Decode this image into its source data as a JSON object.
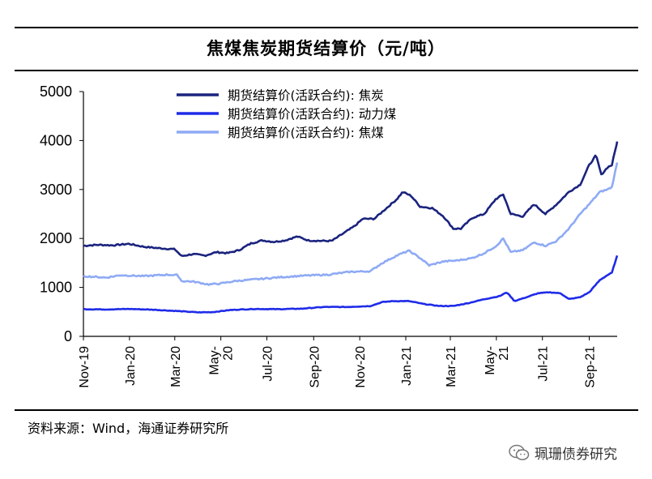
{
  "title": "焦煤焦炭期货结算价（元/吨）",
  "source": "资料来源：Wind，海通证券研究所",
  "watermark": "珮珊债券研究",
  "chart_data": {
    "type": "line",
    "title": "焦煤焦炭期货结算价（元/吨）",
    "ylim": [
      0,
      5000
    ],
    "yticks": [
      0,
      1000,
      2000,
      3000,
      4000,
      5000
    ],
    "xlim": [
      "2019-11-01",
      "2021-10-08"
    ],
    "xticks": [
      "2019-11-01",
      "2020-01-01",
      "2020-03-01",
      "2020-05-01",
      "2020-07-01",
      "2020-09-01",
      "2020-11-01",
      "2021-01-01",
      "2021-03-01",
      "2021-05-01",
      "2021-07-01",
      "2021-09-01"
    ],
    "xtick_labels": [
      "Nov-19",
      "Jan-20",
      "Mar-20",
      "May-20",
      "Jul-20",
      "Sep-20",
      "Nov-20",
      "Jan-21",
      "Mar-21",
      "May-21",
      "Jul-21",
      "Sep-21"
    ],
    "legend_position": "top-center",
    "grid": false,
    "series": [
      {
        "name": "期货结算价(活跃合约): 焦炭",
        "color": "#1a237e",
        "points": [
          [
            "2019-11-01",
            1850
          ],
          [
            "2019-11-20",
            1870
          ],
          [
            "2019-12-10",
            1860
          ],
          [
            "2019-12-31",
            1890
          ],
          [
            "2020-01-20",
            1830
          ],
          [
            "2020-02-10",
            1800
          ],
          [
            "2020-03-01",
            1780
          ],
          [
            "2020-03-10",
            1640
          ],
          [
            "2020-03-25",
            1680
          ],
          [
            "2020-04-10",
            1650
          ],
          [
            "2020-04-25",
            1720
          ],
          [
            "2020-05-10",
            1700
          ],
          [
            "2020-05-25",
            1760
          ],
          [
            "2020-06-10",
            1900
          ],
          [
            "2020-06-25",
            1960
          ],
          [
            "2020-07-10",
            1930
          ],
          [
            "2020-07-25",
            1960
          ],
          [
            "2020-08-10",
            2040
          ],
          [
            "2020-08-25",
            1960
          ],
          [
            "2020-09-10",
            1950
          ],
          [
            "2020-09-25",
            1950
          ],
          [
            "2020-10-10",
            2100
          ],
          [
            "2020-10-25",
            2250
          ],
          [
            "2020-11-05",
            2400
          ],
          [
            "2020-11-20",
            2400
          ],
          [
            "2020-12-05",
            2600
          ],
          [
            "2020-12-20",
            2800
          ],
          [
            "2020-12-28",
            2950
          ],
          [
            "2021-01-08",
            2870
          ],
          [
            "2021-01-20",
            2650
          ],
          [
            "2021-02-05",
            2620
          ],
          [
            "2021-02-20",
            2450
          ],
          [
            "2021-03-05",
            2200
          ],
          [
            "2021-03-15",
            2200
          ],
          [
            "2021-03-30",
            2420
          ],
          [
            "2021-04-15",
            2500
          ],
          [
            "2021-04-30",
            2800
          ],
          [
            "2021-05-10",
            2900
          ],
          [
            "2021-05-20",
            2500
          ],
          [
            "2021-06-05",
            2450
          ],
          [
            "2021-06-20",
            2700
          ],
          [
            "2021-07-05",
            2500
          ],
          [
            "2021-07-20",
            2700
          ],
          [
            "2021-08-05",
            2950
          ],
          [
            "2021-08-20",
            3100
          ],
          [
            "2021-09-01",
            3500
          ],
          [
            "2021-09-10",
            3700
          ],
          [
            "2021-09-17",
            3300
          ],
          [
            "2021-09-25",
            3450
          ],
          [
            "2021-10-01",
            3500
          ],
          [
            "2021-10-08",
            3980
          ]
        ]
      },
      {
        "name": "期货结算价(活跃合约): 动力煤",
        "color": "#1f2be8",
        "points": [
          [
            "2019-11-01",
            555
          ],
          [
            "2019-12-01",
            550
          ],
          [
            "2020-01-01",
            560
          ],
          [
            "2020-02-01",
            545
          ],
          [
            "2020-03-01",
            520
          ],
          [
            "2020-04-01",
            490
          ],
          [
            "2020-04-20",
            495
          ],
          [
            "2020-05-15",
            540
          ],
          [
            "2020-06-15",
            560
          ],
          [
            "2020-07-15",
            555
          ],
          [
            "2020-08-15",
            565
          ],
          [
            "2020-09-15",
            600
          ],
          [
            "2020-10-15",
            600
          ],
          [
            "2020-11-15",
            620
          ],
          [
            "2020-12-01",
            700
          ],
          [
            "2020-12-15",
            720
          ],
          [
            "2021-01-05",
            720
          ],
          [
            "2021-01-25",
            660
          ],
          [
            "2021-02-15",
            620
          ],
          [
            "2021-03-05",
            620
          ],
          [
            "2021-03-25",
            680
          ],
          [
            "2021-04-15",
            760
          ],
          [
            "2021-05-05",
            820
          ],
          [
            "2021-05-15",
            900
          ],
          [
            "2021-05-25",
            720
          ],
          [
            "2021-06-10",
            800
          ],
          [
            "2021-06-25",
            880
          ],
          [
            "2021-07-10",
            900
          ],
          [
            "2021-07-25",
            880
          ],
          [
            "2021-08-05",
            760
          ],
          [
            "2021-08-20",
            800
          ],
          [
            "2021-09-01",
            900
          ],
          [
            "2021-09-15",
            1150
          ],
          [
            "2021-09-25",
            1250
          ],
          [
            "2021-10-01",
            1300
          ],
          [
            "2021-10-08",
            1650
          ]
        ]
      },
      {
        "name": "期货结算价(活跃合约): 焦煤",
        "color": "#8eaaf5",
        "points": [
          [
            "2019-11-01",
            1230
          ],
          [
            "2019-12-01",
            1200
          ],
          [
            "2019-12-20",
            1250
          ],
          [
            "2020-01-20",
            1230
          ],
          [
            "2020-02-20",
            1260
          ],
          [
            "2020-03-05",
            1250
          ],
          [
            "2020-03-10",
            1130
          ],
          [
            "2020-03-25",
            1120
          ],
          [
            "2020-04-15",
            1060
          ],
          [
            "2020-05-01",
            1080
          ],
          [
            "2020-05-20",
            1130
          ],
          [
            "2020-06-20",
            1170
          ],
          [
            "2020-07-20",
            1210
          ],
          [
            "2020-08-20",
            1240
          ],
          [
            "2020-09-20",
            1260
          ],
          [
            "2020-10-20",
            1320
          ],
          [
            "2020-11-15",
            1330
          ],
          [
            "2020-12-01",
            1500
          ],
          [
            "2020-12-20",
            1650
          ],
          [
            "2021-01-05",
            1750
          ],
          [
            "2021-01-20",
            1600
          ],
          [
            "2021-02-01",
            1450
          ],
          [
            "2021-02-20",
            1530
          ],
          [
            "2021-03-10",
            1550
          ],
          [
            "2021-03-30",
            1600
          ],
          [
            "2021-04-15",
            1700
          ],
          [
            "2021-05-01",
            1850
          ],
          [
            "2021-05-10",
            2000
          ],
          [
            "2021-05-20",
            1720
          ],
          [
            "2021-06-05",
            1760
          ],
          [
            "2021-06-20",
            1920
          ],
          [
            "2021-07-05",
            1850
          ],
          [
            "2021-07-20",
            1950
          ],
          [
            "2021-08-05",
            2200
          ],
          [
            "2021-08-20",
            2500
          ],
          [
            "2021-09-01",
            2700
          ],
          [
            "2021-09-15",
            2950
          ],
          [
            "2021-09-25",
            3000
          ],
          [
            "2021-10-01",
            3050
          ],
          [
            "2021-10-08",
            3550
          ]
        ]
      }
    ]
  }
}
